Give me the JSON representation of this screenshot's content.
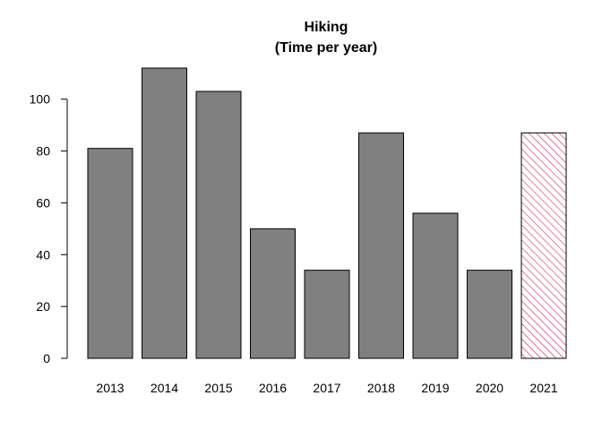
{
  "chart_data": {
    "type": "bar",
    "title": "Hiking",
    "subtitle": "(Time per year)",
    "categories": [
      "2013",
      "2014",
      "2015",
      "2016",
      "2017",
      "2018",
      "2019",
      "2020",
      "2021"
    ],
    "values": [
      81,
      112,
      103,
      50,
      34,
      87,
      56,
      34,
      87
    ],
    "ylim": [
      0,
      112
    ],
    "yticks": [
      0,
      20,
      40,
      60,
      80,
      100
    ],
    "xlabel": "",
    "ylabel": "",
    "bar_color": "#808080",
    "highlight": {
      "category": "2021",
      "fill": "hatched",
      "color": "#cc0044"
    }
  }
}
